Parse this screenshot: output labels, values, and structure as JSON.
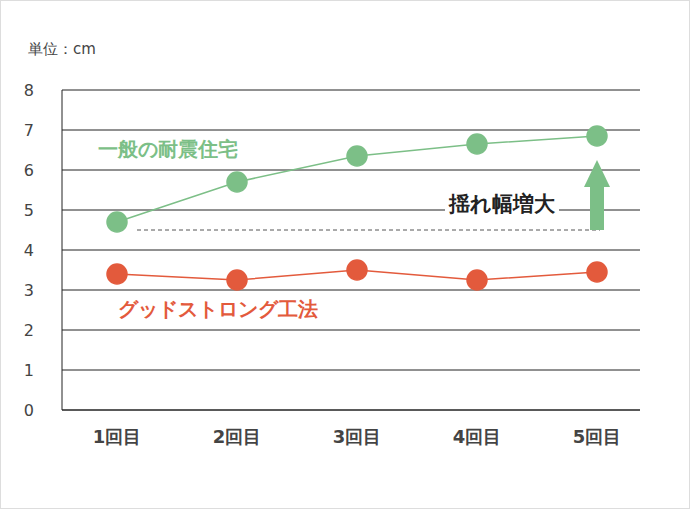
{
  "chart_data": {
    "type": "line",
    "unit_label": "単位：cm",
    "categories": [
      "1回目",
      "2回目",
      "3回目",
      "4回目",
      "5回目"
    ],
    "series": [
      {
        "name": "一般の耐震住宅",
        "color": "#7cbf87",
        "marker": "circle",
        "values": [
          4.7,
          5.7,
          6.35,
          6.65,
          6.85
        ]
      },
      {
        "name": "グッドストロング工法",
        "color": "#e35a3c",
        "marker": "circle",
        "values": [
          3.4,
          3.25,
          3.5,
          3.25,
          3.45
        ]
      }
    ],
    "ylim": [
      0,
      8
    ],
    "yticks": [
      0,
      1,
      2,
      3,
      4,
      5,
      6,
      7,
      8
    ],
    "grid": true,
    "annotations": [
      "揺れ幅増大"
    ]
  }
}
